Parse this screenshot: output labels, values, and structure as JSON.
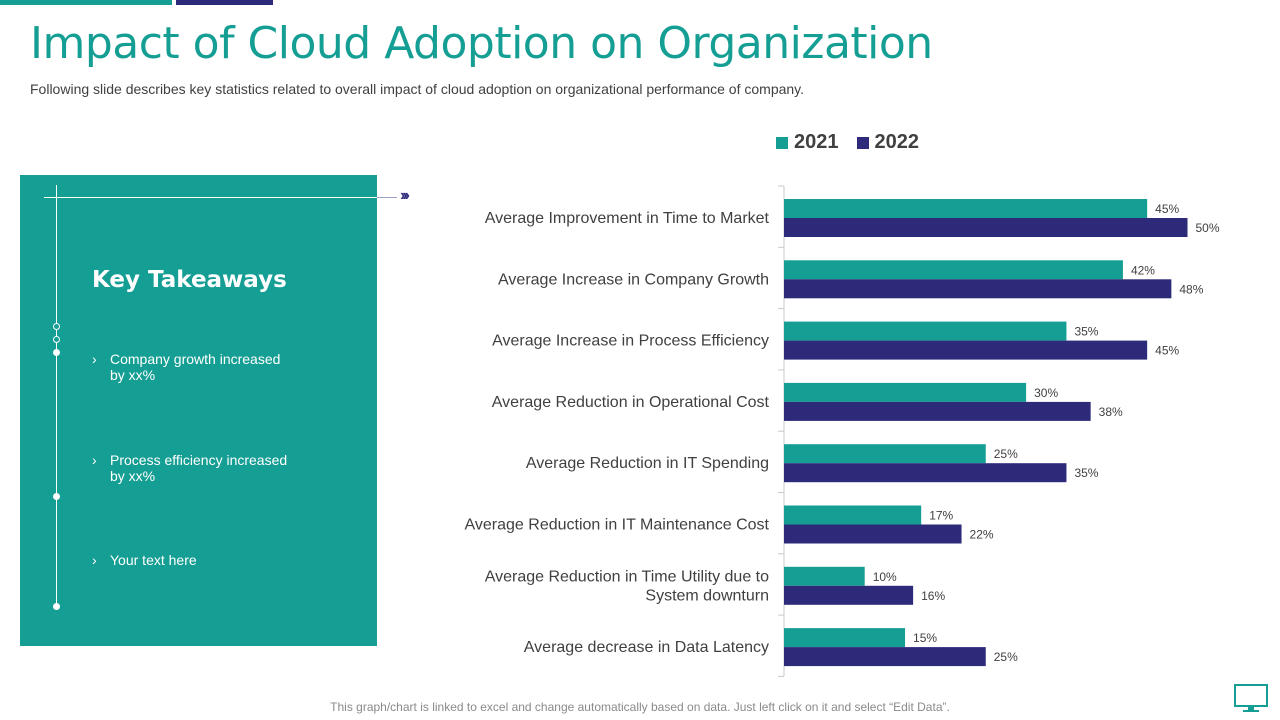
{
  "header": {
    "title": "Impact of Cloud Adoption on Organization",
    "subtitle": "Following slide describes key statistics related to overall impact of cloud adoption on organizational performance of company."
  },
  "panel": {
    "heading": "Key Takeaways",
    "bullets": [
      {
        "line1": "Company growth increased",
        "line2": "by xx%"
      },
      {
        "line1": "Process efficiency increased",
        "line2": "by xx%"
      },
      {
        "line1": "Your text here",
        "line2": ""
      }
    ],
    "chevron": "›",
    "arrow_glyph": "›››"
  },
  "legend": [
    {
      "name": "2021",
      "color": "#159e93"
    },
    {
      "name": "2022",
      "color": "#2d2a7a"
    }
  ],
  "chart_data": {
    "type": "bar",
    "orientation": "horizontal",
    "categories": [
      [
        "Average Improvement in Time to Market"
      ],
      [
        "Average Increase in Company Growth"
      ],
      [
        "Average Increase in Process Efficiency"
      ],
      [
        "Average Reduction in Operational Cost"
      ],
      [
        "Average Reduction in IT Spending"
      ],
      [
        "Average Reduction in IT Maintenance Cost"
      ],
      [
        "Average Reduction in Time Utility due to",
        "System downturn"
      ],
      [
        "Average decrease in Data Latency"
      ]
    ],
    "series": [
      {
        "name": "2021",
        "color": "#159e93",
        "values": [
          45,
          42,
          35,
          30,
          25,
          17,
          10,
          15
        ],
        "labels": [
          "45%",
          "42%",
          "35%",
          "30%",
          "25%",
          "17%",
          "10%",
          "15%"
        ]
      },
      {
        "name": "2022",
        "color": "#2d2a7a",
        "values": [
          50,
          48,
          45,
          38,
          35,
          22,
          16,
          25
        ],
        "labels": [
          "50%",
          "48%",
          "45%",
          "38%",
          "35%",
          "22%",
          "16%",
          "25%"
        ]
      }
    ],
    "xlim": [
      0,
      60
    ],
    "title": "",
    "xlabel": "",
    "ylabel": "",
    "legend_position": "top",
    "grid": false
  },
  "footer": {
    "note": "This graph/chart is linked to excel and change automatically based on data. Just left click on it and select “Edit Data”."
  },
  "icons": {
    "monitor": "monitor-icon"
  }
}
